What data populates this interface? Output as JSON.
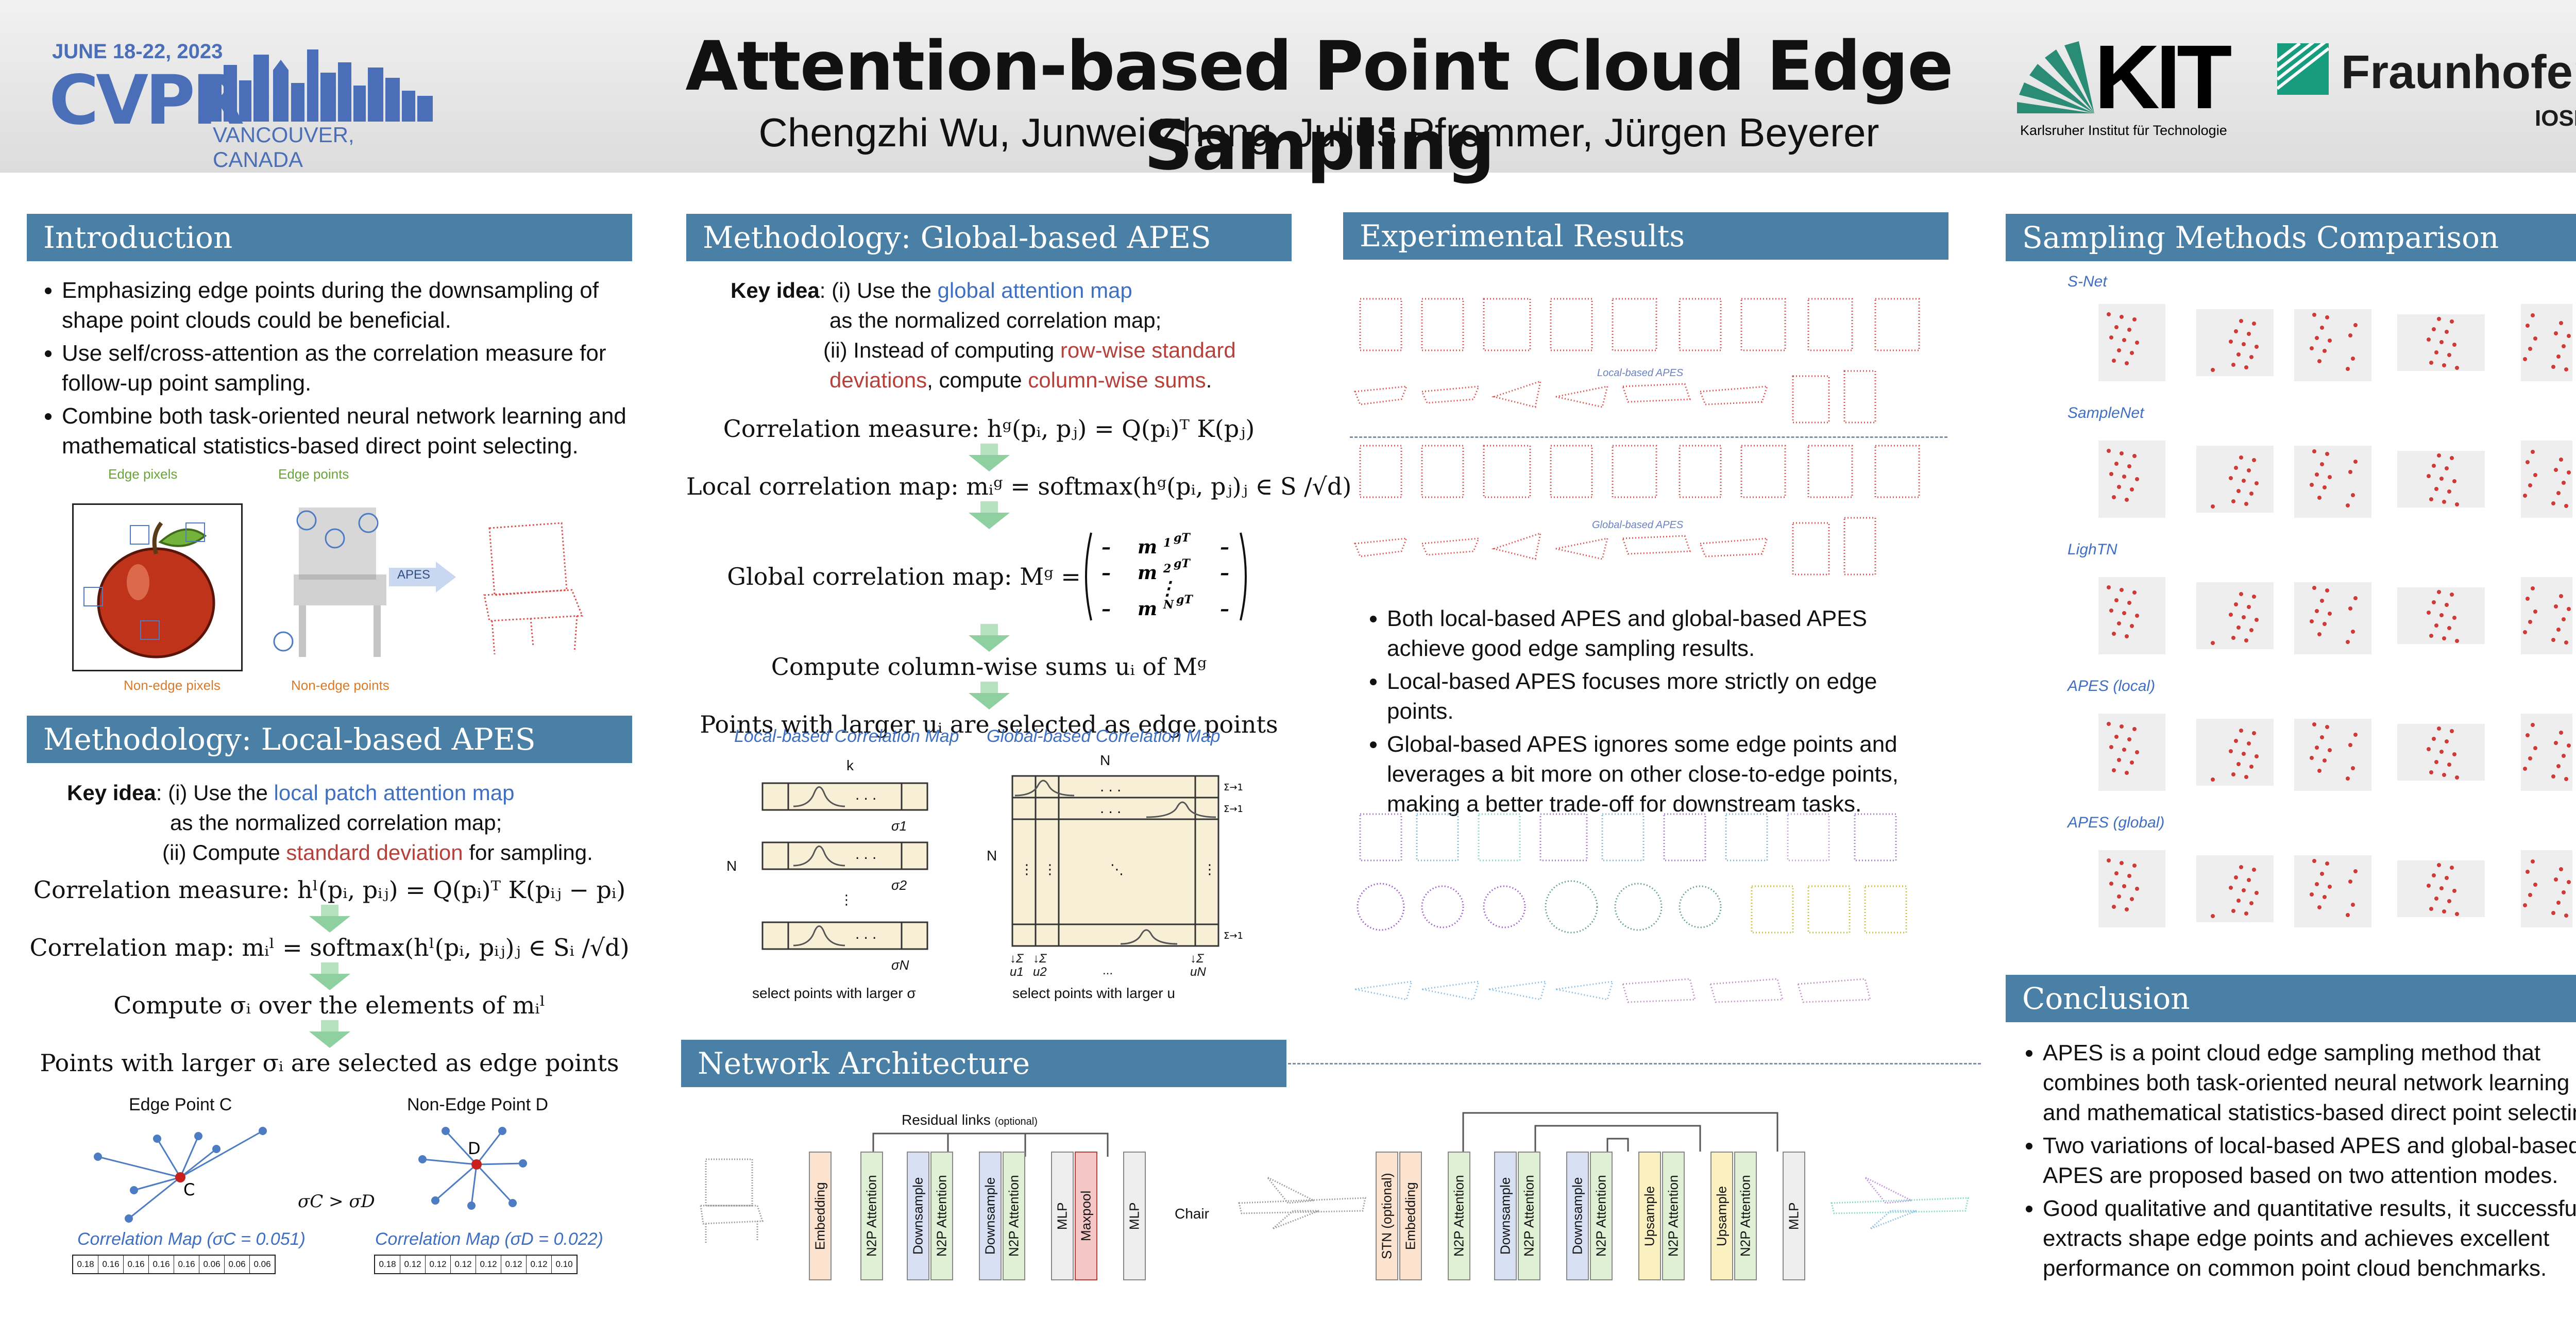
{
  "header": {
    "conf_dates": "JUNE 18-22, 2023",
    "conf_name": "CVPR",
    "conf_location": "VANCOUVER, CANADA",
    "title": "Attention-based Point Cloud Edge Sampling",
    "authors": "Chengzhi Wu, Junwei Zheng, Julius Pfrommer, Jürgen Beyerer",
    "kit_name": "KIT",
    "kit_sub": "Karlsruher Institut für Technologie",
    "fraunhofer_name": "Fraunhofer",
    "fraunhofer_sub": "IOSB"
  },
  "intro": {
    "heading": "Introduction",
    "bullets": [
      "Emphasizing edge points during the downsampling of shape point clouds could be beneficial.",
      "Use self/cross-attention as the correlation measure for follow-up point sampling.",
      "Combine both task-oriented neural network learning and mathematical statistics-based direct point selecting."
    ],
    "fig_edge_pixels": "Edge pixels",
    "fig_edge_points": "Edge points",
    "fig_nonedge_pixels": "Non-edge pixels",
    "fig_nonedge_points": "Non-edge points",
    "fig_apes": "APES"
  },
  "local": {
    "heading": "Methodology: Local-based APES",
    "key_idea": "Key idea",
    "line1_a": ": (i) Use the ",
    "line1_b": "local patch attention map",
    "line2": "as the normalized correlation map;",
    "line3_a": "(ii) Compute ",
    "line3_b": "standard deviation",
    "line3_c": " for sampling.",
    "eq1": "Correlation measure: hˡ(pᵢ, pᵢⱼ) = Q(pᵢ)ᵀ K(pᵢⱼ − pᵢ)",
    "eq2": "Correlation map: mᵢˡ = softmax(hˡ(pᵢ, pᵢⱼ)ⱼ ∈ Sᵢ /√d)",
    "eq3": "Compute σᵢ over the elements of mᵢˡ",
    "eq4": "Points with larger σᵢ  are selected as edge points",
    "edge_c": "Edge Point C",
    "nonedge_d": "Non-Edge Point D",
    "compare": "σC > σD",
    "cap_c": "Correlation Map (σC = 0.051)",
    "cap_d": "Correlation Map (σD = 0.022)",
    "vals_c": [
      "0.18",
      "0.16",
      "0.16",
      "0.16",
      "0.16",
      "0.06",
      "0.06",
      "0.06"
    ],
    "vals_d": [
      "0.18",
      "0.12",
      "0.12",
      "0.12",
      "0.12",
      "0.12",
      "0.12",
      "0.10"
    ]
  },
  "global": {
    "heading": "Methodology: Global-based APES",
    "key_idea": "Key idea",
    "line1_a": ": (i) Use the ",
    "line1_b": "global attention map",
    "line2": "as the normalized correlation map;",
    "line3_a": "(ii) Instead of computing ",
    "line3_b": "row-wise standard",
    "line4_a": "deviations",
    "line4_b": ", compute ",
    "line4_c": "column-wise sums",
    "line4_d": ".",
    "eq1": "Correlation measure: hᵍ(pᵢ, pⱼ) = Q(pᵢ)ᵀ K(pⱼ)",
    "eq2": "Local correlation map: mᵢᵍ = softmax(hᵍ(pᵢ, pⱼ)ⱼ ∈ S /√d)",
    "eq3": "Global correlation map: Mᵍ =",
    "eq4": "Compute column-wise sums  uᵢ of Mᵍ",
    "eq5": "Points with larger uᵢ  are selected as edge points",
    "cap_local": "Local-based Correlation Map",
    "cap_global": "Global-based Correlation Map",
    "sel_sigma": "select points with larger σ",
    "sel_u": "select points with larger u",
    "k": "k",
    "n": "N",
    "sigma1": "σ1",
    "sigma2": "σ2",
    "sigmaN": "σN",
    "u_labels": [
      "↓Σ u1",
      "↓Σ u2",
      "...",
      "↓Σ uN"
    ]
  },
  "results": {
    "heading": "Experimental Results",
    "lbl_local": "Local-based APES",
    "lbl_global": "Global-based APES",
    "bullets": [
      "Both local-based APES and global-based APES achieve good edge sampling results.",
      "Local-based APES focuses more strictly on edge points.",
      "Global-based APES ignores some edge points and leverages a bit more on other close-to-edge points, making a better trade-off for downstream tasks."
    ]
  },
  "comparison": {
    "heading": "Sampling Methods Comparison",
    "rows": [
      "S-Net",
      "SampleNet",
      "LighTN",
      "APES (local)",
      "APES (global)"
    ]
  },
  "network": {
    "heading": "Network Architecture",
    "residual": "Residual links",
    "optional": "(optional)",
    "output": "Chair",
    "cls_blocks": [
      "Embedding",
      "N2P Attention",
      "Downsample",
      "N2P Attention",
      "Downsample",
      "N2P Attention",
      "MLP",
      "Maxpool",
      "MLP"
    ],
    "seg_blocks": [
      "STN (optional)",
      "Embedding",
      "N2P Attention",
      "Downsample",
      "N2P Attention",
      "Downsample",
      "N2P Attention",
      "Upsample",
      "N2P Attention",
      "Upsample",
      "N2P Attention",
      "MLP"
    ]
  },
  "conclusion": {
    "heading": "Conclusion",
    "bullets": [
      "APES is a point cloud edge sampling method that combines both task-oriented neural network learning and mathematical statistics-based direct point selecting.",
      "Two variations of local-based APES and global-based APES are proposed based on two attention modes.",
      "Good qualitative and quantitative results, it successfully extracts shape edge points and achieves excellent performance on common point cloud benchmarks."
    ]
  },
  "colors": {
    "section": "#4a7fa6",
    "accent_blue": "#3f6fc0",
    "accent_red": "#b5413a",
    "arrow": "#8fd0a0"
  }
}
